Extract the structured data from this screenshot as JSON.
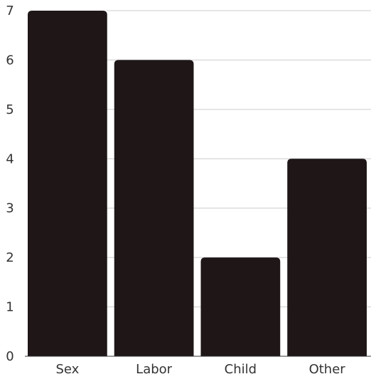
{
  "chart_data": {
    "type": "bar",
    "categories": [
      "Sex",
      "Labor",
      "Child",
      "Other"
    ],
    "values": [
      7,
      6,
      2,
      4
    ],
    "title": "",
    "xlabel": "",
    "ylabel": "",
    "ylim": [
      0,
      7
    ],
    "yticks": [
      "0",
      "1",
      "2",
      "3",
      "4",
      "5",
      "6",
      "7"
    ],
    "grid": true,
    "bar_color": "#1e1617",
    "grid_color": "#cccccc"
  }
}
